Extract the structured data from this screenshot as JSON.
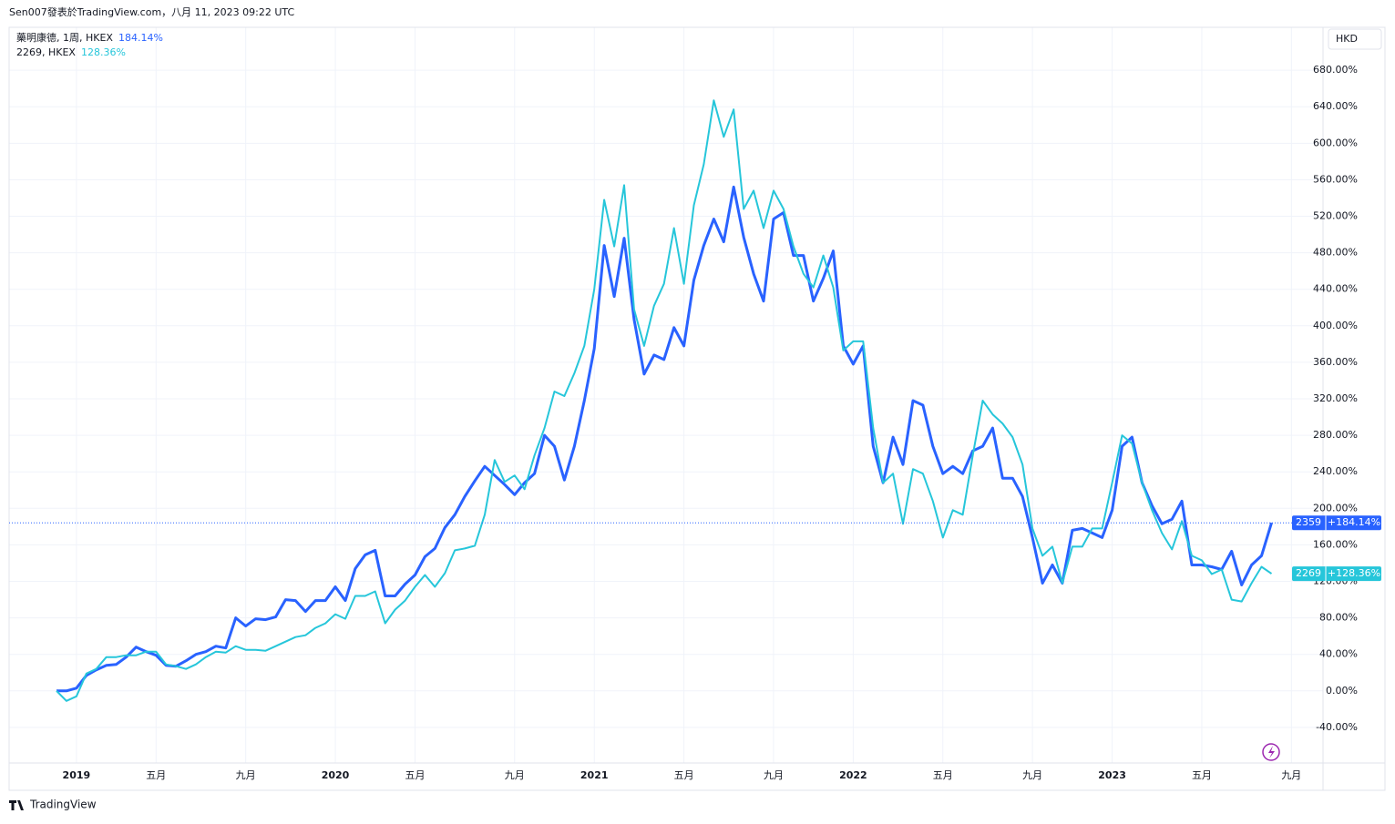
{
  "header": "Sen007發表於TradingView.com，八月 11, 2023 09:22 UTC",
  "footer": "TradingView",
  "chart_data": {
    "type": "line",
    "currency": "HKD",
    "grid": true,
    "categories": [
      null,
      null,
      "2019",
      null,
      null,
      null,
      null,
      null,
      null,
      null,
      "五月",
      null,
      null,
      null,
      null,
      null,
      null,
      null,
      null,
      "九月",
      null,
      null,
      null,
      null,
      null,
      null,
      null,
      null,
      "2020",
      null,
      null,
      null,
      null,
      null,
      null,
      null,
      "五月",
      null,
      null,
      null,
      null,
      null,
      null,
      null,
      null,
      null,
      "九月",
      null,
      null,
      null,
      null,
      null,
      null,
      null,
      "2021",
      null,
      null,
      null,
      null,
      null,
      null,
      null,
      null,
      "五月",
      null,
      null,
      null,
      null,
      null,
      null,
      null,
      null,
      "九月",
      null,
      null,
      null,
      null,
      null,
      null,
      null,
      "2022",
      null,
      null,
      null,
      null,
      null,
      null,
      null,
      null,
      "五月",
      null,
      null,
      null,
      null,
      null,
      null,
      null,
      null,
      "九月",
      null,
      null,
      null,
      null,
      null,
      null,
      null,
      "2023",
      null,
      null,
      null,
      null,
      null,
      null,
      null,
      null,
      "五月",
      null,
      null,
      null,
      null,
      null,
      null,
      null,
      null,
      "九月"
    ],
    "ylim": [
      -79,
      727
    ],
    "yticks": [
      {
        "value": -40,
        "label": "-40.00%"
      },
      {
        "value": 0,
        "label": "0.00%"
      },
      {
        "value": 40,
        "label": "40.00%"
      },
      {
        "value": 80,
        "label": "80.00%"
      },
      {
        "value": 120,
        "label": "120.00%"
      },
      {
        "value": 160,
        "label": "160.00%"
      },
      {
        "value": 200,
        "label": "200.00%"
      },
      {
        "value": 240,
        "label": "240.00%"
      },
      {
        "value": 280,
        "label": "280.00%"
      },
      {
        "value": 320,
        "label": "320.00%"
      },
      {
        "value": 360,
        "label": "360.00%"
      },
      {
        "value": 400,
        "label": "400.00%"
      },
      {
        "value": 440,
        "label": "440.00%"
      },
      {
        "value": 480,
        "label": "480.00%"
      },
      {
        "value": 520,
        "label": "520.00%"
      },
      {
        "value": 560,
        "label": "560.00%"
      },
      {
        "value": 600,
        "label": "600.00%"
      },
      {
        "value": 640,
        "label": "640.00%"
      },
      {
        "value": 680,
        "label": "680.00%"
      }
    ],
    "series": [
      {
        "name": "藥明康德, 1周, HKEX",
        "legend_value": "184.14%",
        "symbol": "2359",
        "badge_label": "+184.14%",
        "color": "#2962ff",
        "width": 3,
        "values": [
          0,
          0,
          3,
          17,
          23,
          28,
          29,
          37,
          48,
          43,
          39,
          28,
          27,
          33,
          40,
          43,
          49,
          47,
          80,
          71,
          79,
          78,
          81,
          100,
          99,
          87,
          99,
          99,
          114,
          99,
          134,
          149,
          154,
          104,
          104,
          117,
          127,
          147,
          156,
          179,
          193,
          213,
          230,
          246,
          236,
          226,
          215,
          228,
          238,
          280,
          268,
          231,
          268,
          318,
          375,
          488,
          432,
          496,
          407,
          347,
          368,
          363,
          398,
          378,
          450,
          488,
          517,
          492,
          552,
          497,
          457,
          427,
          517,
          524,
          477,
          477,
          427,
          452,
          482,
          378,
          358,
          378,
          268,
          228,
          278,
          248,
          318,
          313,
          268,
          238,
          246,
          238,
          263,
          268,
          288,
          233,
          233,
          213,
          168,
          118,
          138,
          118,
          176,
          178,
          173,
          168,
          198,
          268,
          278,
          228,
          203,
          183,
          188,
          208,
          138,
          138,
          136,
          133,
          153,
          116,
          138,
          148,
          184.14,
          null,
          null
        ]
      },
      {
        "name": "2269, HKEX",
        "legend_value": "128.36%",
        "symbol": "2269",
        "badge_label": "+128.36%",
        "color": "#26c6da",
        "width": 2,
        "values": [
          0,
          -11,
          -6,
          19,
          24,
          37,
          37,
          39,
          39,
          43,
          43,
          29,
          27,
          24,
          29,
          37,
          43,
          42,
          49,
          45,
          45,
          44,
          49,
          54,
          59,
          61,
          69,
          74,
          84,
          79,
          104,
          104,
          109,
          74,
          89,
          99,
          114,
          127,
          114,
          129,
          154,
          156,
          159,
          193,
          253,
          229,
          236,
          221,
          258,
          288,
          328,
          323,
          348,
          378,
          440,
          538,
          487,
          554,
          418,
          378,
          422,
          446,
          507,
          446,
          532,
          577,
          647,
          607,
          637,
          528,
          548,
          507,
          548,
          528,
          487,
          457,
          442,
          477,
          442,
          373,
          383,
          383,
          288,
          228,
          238,
          183,
          243,
          238,
          208,
          168,
          198,
          193,
          258,
          318,
          303,
          293,
          278,
          248,
          178,
          148,
          158,
          118,
          158,
          158,
          178,
          178,
          228,
          280,
          271,
          228,
          198,
          173,
          155,
          186,
          148,
          143,
          128,
          133,
          100,
          98,
          118,
          136,
          128.36,
          null,
          null
        ]
      }
    ]
  }
}
